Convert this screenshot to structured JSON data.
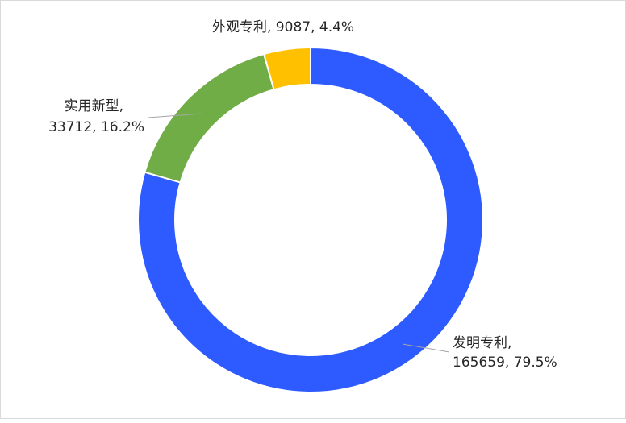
{
  "chart_data": {
    "type": "pie",
    "variant": "donut",
    "title": "",
    "legend": "none",
    "slices": [
      {
        "name": "发明专利",
        "value": 165659,
        "percent": "79.5%",
        "color": "#2e5bff",
        "label_name": "发明专利,",
        "label_value": "165659, 79.5%"
      },
      {
        "name": "实用新型",
        "value": 33712,
        "percent": "16.2%",
        "color": "#71ad47",
        "label_name": "实用新型,",
        "label_value": "33712, 16.2%"
      },
      {
        "name": "外观专利",
        "value": 9087,
        "percent": "4.4%",
        "color": "#ffc000",
        "label_name": "外观专利, 9087, 4.4%",
        "label_value": ""
      }
    ]
  }
}
